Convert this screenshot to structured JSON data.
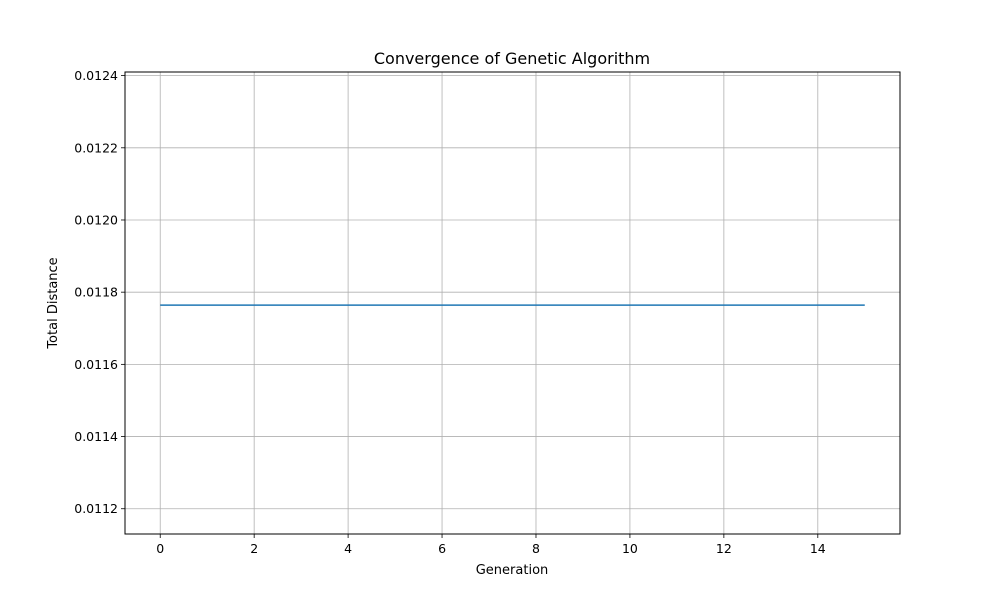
{
  "chart_data": {
    "type": "line",
    "title": "Convergence of Genetic Algorithm",
    "xlabel": "Generation",
    "ylabel": "Total Distance",
    "xlim": [
      -0.75,
      15.75
    ],
    "ylim": [
      0.01113,
      0.01241
    ],
    "x_ticks": [
      0,
      2,
      4,
      6,
      8,
      10,
      12,
      14
    ],
    "y_ticks": [
      0.0112,
      0.0114,
      0.0116,
      0.0118,
      0.012,
      0.0122,
      0.0124
    ],
    "y_tick_labels": [
      "0.0112",
      "0.0114",
      "0.0116",
      "0.0118",
      "0.0120",
      "0.0122",
      "0.0124"
    ],
    "grid": true,
    "series": [
      {
        "color": "#1f77b4",
        "x": [
          0,
          1,
          2,
          3,
          4,
          5,
          6,
          7,
          8,
          9,
          10,
          11,
          12,
          13,
          14,
          15
        ],
        "values": [
          0.011764,
          0.011764,
          0.011764,
          0.011764,
          0.011764,
          0.011764,
          0.011764,
          0.011764,
          0.011764,
          0.011764,
          0.011764,
          0.011764,
          0.011764,
          0.011764,
          0.011764,
          0.011764
        ]
      }
    ]
  }
}
